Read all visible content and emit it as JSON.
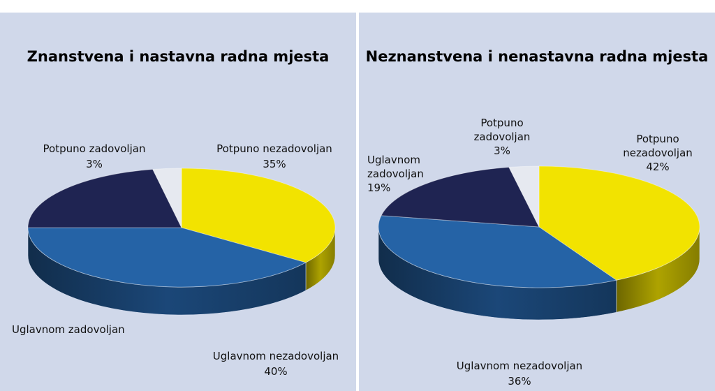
{
  "chart_data": [
    {
      "type": "pie",
      "title": "Znanstvena i nastavna radna mjesta",
      "slices": [
        {
          "label": "Potpuno nezadovoljan",
          "value": 35,
          "label_text": "35%",
          "color": "#f2e300"
        },
        {
          "label": "Uglavnom nezadovoljan",
          "value": 40,
          "label_text": "40%",
          "color": "#2563a6"
        },
        {
          "label": "Uglavnom zadovoljan",
          "value": 22,
          "label_text": "",
          "color": "#1f2452"
        },
        {
          "label": "Potpuno zadovoljan",
          "value": 3,
          "label_text": "3%",
          "color": "#e6e9f0"
        }
      ]
    },
    {
      "type": "pie",
      "title": "Neznanstvena i nenastavna radna mjesta",
      "slices": [
        {
          "label": "Potpuno\nnezadovoljan",
          "value": 42,
          "label_text": "42%",
          "color": "#f2e300"
        },
        {
          "label": "Uglavnom nezadovoljan",
          "value": 36,
          "label_text": "36%",
          "color": "#2563a6"
        },
        {
          "label": "Uglavnom\nzadovoljan",
          "value": 19,
          "label_text": "19%",
          "color": "#1f2452"
        },
        {
          "label": "Potpuno\nzadovoljan",
          "value": 3,
          "label_text": "3%",
          "color": "#e6e9f0"
        }
      ]
    }
  ]
}
